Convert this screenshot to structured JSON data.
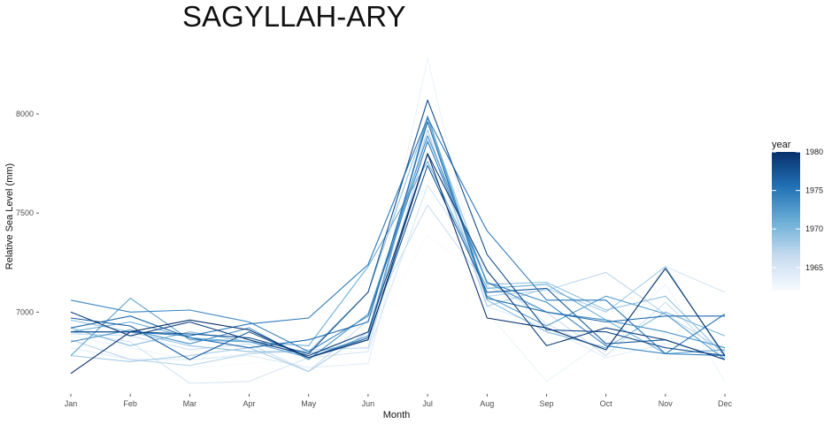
{
  "chart_data": {
    "type": "line",
    "title": "SAGYLLAH-ARY",
    "xlabel": "Month",
    "ylabel": "Relative Sea Level (mm)",
    "categories": [
      "Jan",
      "Feb",
      "Mar",
      "Apr",
      "May",
      "Jun",
      "Jul",
      "Aug",
      "Sep",
      "Oct",
      "Nov",
      "Dec"
    ],
    "ylim": [
      6600,
      8330
    ],
    "yticks": [
      7000,
      7500,
      8000
    ],
    "ytick_labels": [
      "7000",
      "7500",
      "8000"
    ],
    "grid": false,
    "legend": {
      "title": "year",
      "type": "colorbar",
      "placement": "right",
      "range": [
        1962,
        1980
      ],
      "ticks": [
        1965,
        1970,
        1975,
        1980
      ],
      "tick_labels": [
        "1965",
        "1970",
        "1975",
        "1980"
      ],
      "colors": [
        "#f7fbff",
        "#c6dbef",
        "#6baed6",
        "#2171b5",
        "#08306b"
      ]
    },
    "series": [
      {
        "year": 1962,
        "values": [
          6860,
          6780,
          6720,
          6740,
          6780,
          6850,
          7390,
          7150,
          6980,
          6930,
          6890,
          6830
        ]
      },
      {
        "year": 1963,
        "values": [
          6880,
          6820,
          6760,
          6790,
          6800,
          6880,
          8280,
          7000,
          6650,
          6860,
          7140,
          6650
        ]
      },
      {
        "year": 1964,
        "values": [
          6820,
          6760,
          6760,
          6780,
          6720,
          6740,
          7880,
          7030,
          6920,
          6770,
          6840,
          6790
        ]
      },
      {
        "year": 1965,
        "values": [
          6900,
          6850,
          6640,
          6650,
          6770,
          6800,
          7640,
          7200,
          6940,
          6800,
          7230,
          7100
        ]
      },
      {
        "year": 1966,
        "values": [
          6890,
          6880,
          6810,
          6840,
          6700,
          6960,
          7540,
          7130,
          7000,
          6780,
          7050,
          6760
        ]
      },
      {
        "year": 1967,
        "values": [
          6860,
          6760,
          6730,
          6790,
          6810,
          6820,
          7870,
          7080,
          7110,
          7200,
          6990,
          6800
        ]
      },
      {
        "year": 1968,
        "values": [
          6780,
          6750,
          6780,
          6820,
          6700,
          6900,
          7920,
          7030,
          7120,
          7000,
          7230,
          6770
        ]
      },
      {
        "year": 1969,
        "values": [
          6960,
          6900,
          6830,
          6800,
          6800,
          7100,
          7980,
          7140,
          7150,
          7010,
          7080,
          6780
        ]
      },
      {
        "year": 1970,
        "values": [
          6920,
          6830,
          6900,
          6850,
          6790,
          6860,
          7980,
          7060,
          6900,
          6820,
          7000,
          6880
        ]
      },
      {
        "year": 1971,
        "values": [
          6900,
          6950,
          6870,
          6850,
          6830,
          7230,
          7760,
          7120,
          7140,
          6960,
          6790,
          6810
        ]
      },
      {
        "year": 1972,
        "values": [
          6780,
          7070,
          6860,
          6850,
          6770,
          6880,
          7990,
          7080,
          6930,
          7080,
          6990,
          6760
        ]
      },
      {
        "year": 1973,
        "values": [
          6850,
          6910,
          6840,
          6920,
          6760,
          6990,
          7890,
          7150,
          7000,
          6960,
          6900,
          6820
        ]
      },
      {
        "year": 1974,
        "values": [
          7060,
          7000,
          7010,
          6950,
          6800,
          6980,
          7860,
          7150,
          7050,
          6830,
          6790,
          6780
        ]
      },
      {
        "year": 1975,
        "values": [
          6900,
          6900,
          6880,
          6940,
          6970,
          7240,
          7980,
          7410,
          7060,
          7060,
          6790,
          6990
        ]
      },
      {
        "year": 1976,
        "values": [
          6920,
          6980,
          6870,
          6820,
          6860,
          6950,
          7960,
          7070,
          7000,
          6950,
          6980,
          6980
        ]
      },
      {
        "year": 1977,
        "values": [
          6970,
          6930,
          6760,
          6900,
          6770,
          6870,
          7740,
          7100,
          7120,
          6840,
          6860,
          6760
        ]
      },
      {
        "year": 1978,
        "values": [
          6900,
          6900,
          6890,
          6870,
          6790,
          7100,
          8070,
          7290,
          6910,
          6900,
          6820,
          6780
        ]
      },
      {
        "year": 1979,
        "values": [
          7000,
          6880,
          6950,
          6860,
          6780,
          6900,
          7800,
          7210,
          6830,
          6920,
          6860,
          6760
        ]
      },
      {
        "year": 1980,
        "values": [
          6690,
          6900,
          6960,
          6910,
          6770,
          6860,
          7800,
          6970,
          6920,
          6810,
          7220,
          6780
        ]
      }
    ]
  }
}
